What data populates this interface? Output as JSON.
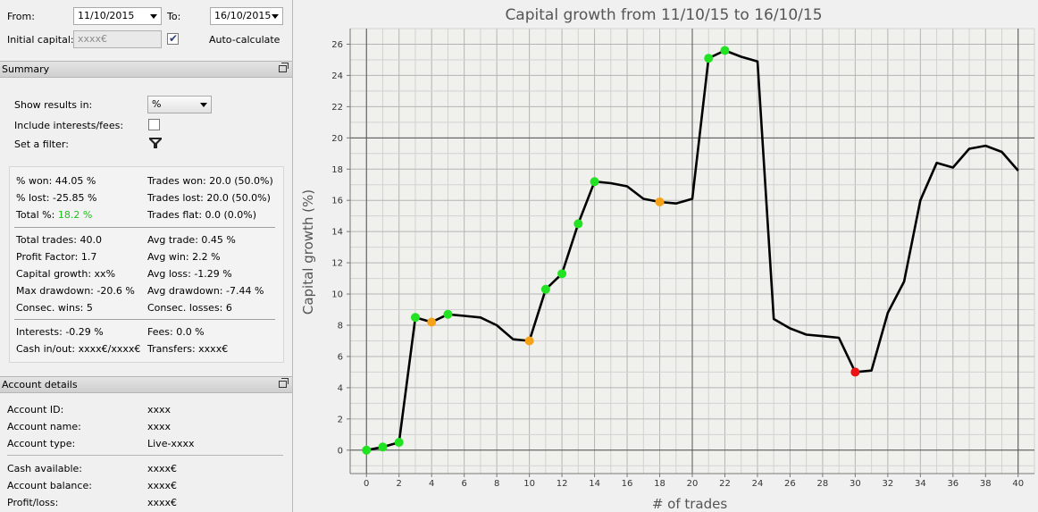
{
  "filters": {
    "from_label": "From:",
    "from_value": "11/10/2015",
    "to_label": "To:",
    "to_value": "16/10/2015",
    "initial_capital_label": "Initial capital:",
    "initial_capital_value": "xxxx€",
    "auto_calculate_label": "Auto-calculate",
    "auto_calculate_checked": true
  },
  "summary": {
    "header": "Summary",
    "show_results_label": "Show results in:",
    "show_results_value": "%",
    "include_interests_label": "Include interests/fees:",
    "include_interests_checked": false,
    "filter_label": "Set a filter:",
    "stats": {
      "pct_won": "% won: 44.05 %",
      "pct_lost": "% lost: -25.85 %",
      "total_pct_label": "Total %: ",
      "total_pct_value": "18.2 %",
      "trades_won": "Trades won: 20.0 (50.0%)",
      "trades_lost": "Trades lost: 20.0 (50.0%)",
      "trades_flat": "Trades flat: 0.0 (0.0%)",
      "total_trades": "Total trades: 40.0",
      "profit_factor": "Profit Factor: 1.7",
      "capital_growth": "Capital growth: xx%",
      "max_drawdown": "Max drawdown: -20.6 %",
      "consec_wins": "Consec. wins: 5",
      "avg_trade": "Avg trade: 0.45 %",
      "avg_win": "Avg win: 2.2 %",
      "avg_loss": "Avg loss: -1.29 %",
      "avg_drawdown": "Avg drawdown: -7.44 %",
      "consec_losses": "Consec. losses: 6",
      "interests": "Interests: -0.29 %",
      "cash_in_out": "Cash in/out: xxxx€/xxxx€",
      "fees": "Fees: 0.0 %",
      "transfers": "Transfers: xxxx€"
    }
  },
  "account": {
    "header": "Account details",
    "rows": [
      {
        "label": "Account ID:",
        "value": "xxxx"
      },
      {
        "label": "Account name:",
        "value": "xxxx"
      },
      {
        "label": "Account type:",
        "value": "Live-xxxx"
      },
      {
        "label": "Cash available:",
        "value": "xxxx€"
      },
      {
        "label": "Account balance:",
        "value": "xxxx€"
      },
      {
        "label": "Profit/loss:",
        "value": "xxxx€"
      }
    ]
  },
  "colors": {
    "win_point": "#22e322",
    "loss_point": "#f5a21b",
    "drawdown_point": "#ee1111",
    "line": "#000000",
    "total_pct": "#1fbf1f"
  },
  "chart_data": {
    "type": "line",
    "title": "Capital growth from 11/10/15 to 16/10/15",
    "xlabel": "# of trades",
    "ylabel": "Capital growth (%)",
    "xlim": [
      -1,
      41
    ],
    "ylim": [
      -1.5,
      27.0
    ],
    "xticks": [
      0,
      2,
      4,
      6,
      8,
      10,
      12,
      14,
      16,
      18,
      20,
      22,
      24,
      26,
      28,
      30,
      32,
      34,
      36,
      38,
      40
    ],
    "yticks": [
      0,
      2,
      4,
      6,
      8,
      10,
      12,
      14,
      16,
      18,
      20,
      22,
      24,
      26
    ],
    "grid": true,
    "x": [
      0,
      1,
      2,
      3,
      4,
      5,
      6,
      7,
      8,
      9,
      10,
      11,
      12,
      13,
      14,
      15,
      16,
      17,
      18,
      19,
      20,
      21,
      22,
      23,
      24,
      25,
      26,
      27,
      28,
      29,
      30,
      31,
      32,
      33,
      34,
      35,
      36,
      37,
      38,
      39,
      40
    ],
    "values": [
      0.0,
      0.2,
      0.5,
      8.5,
      8.2,
      8.7,
      8.6,
      8.5,
      8.0,
      7.1,
      7.0,
      10.3,
      11.3,
      14.5,
      17.2,
      17.1,
      16.9,
      16.1,
      15.9,
      15.8,
      16.1,
      25.1,
      25.6,
      25.2,
      24.9,
      8.4,
      7.8,
      7.4,
      7.3,
      7.2,
      5.0,
      5.1,
      8.8,
      10.8,
      16.0,
      18.4,
      18.1,
      19.3,
      19.5,
      19.1,
      17.9
    ],
    "markers": [
      {
        "x": 0,
        "kind": "win"
      },
      {
        "x": 1,
        "kind": "win"
      },
      {
        "x": 2,
        "kind": "win"
      },
      {
        "x": 3,
        "kind": "win"
      },
      {
        "x": 4,
        "kind": "loss"
      },
      {
        "x": 5,
        "kind": "win"
      },
      {
        "x": 10,
        "kind": "loss"
      },
      {
        "x": 11,
        "kind": "win"
      },
      {
        "x": 12,
        "kind": "win"
      },
      {
        "x": 13,
        "kind": "win"
      },
      {
        "x": 14,
        "kind": "win"
      },
      {
        "x": 18,
        "kind": "loss"
      },
      {
        "x": 21,
        "kind": "win"
      },
      {
        "x": 22,
        "kind": "win"
      },
      {
        "x": 30,
        "kind": "drawdown"
      }
    ]
  }
}
